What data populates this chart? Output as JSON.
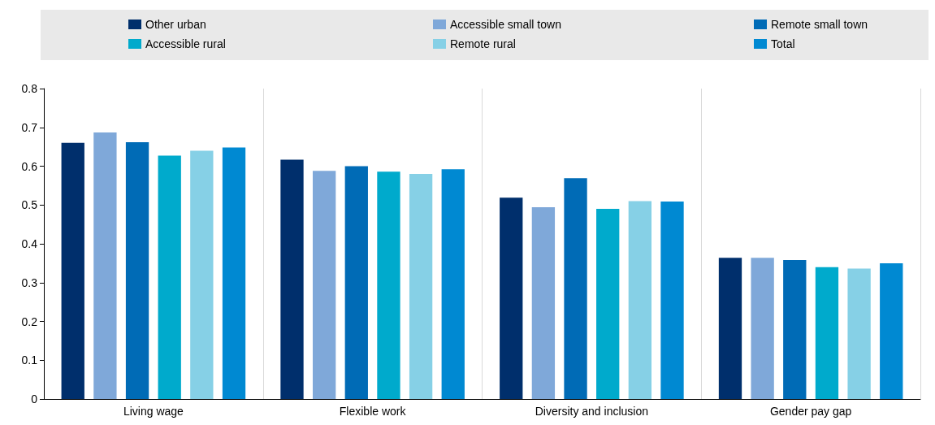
{
  "chart_data": {
    "type": "bar",
    "categories": [
      "Living wage",
      "Flexible work",
      "Diversity and inclusion",
      "Gender pay gap"
    ],
    "series": [
      {
        "name": "Other urban",
        "color": "#002f6c",
        "values": [
          0.66,
          0.617,
          0.519,
          0.364
        ]
      },
      {
        "name": "Accessible small town",
        "color": "#7fa8d9",
        "values": [
          0.687,
          0.588,
          0.494,
          0.364
        ]
      },
      {
        "name": "Remote small town",
        "color": "#006bb6",
        "values": [
          0.662,
          0.6,
          0.569,
          0.358
        ]
      },
      {
        "name": "Accessible rural",
        "color": "#00aacc",
        "values": [
          0.627,
          0.586,
          0.49,
          0.34
        ]
      },
      {
        "name": "Remote rural",
        "color": "#86d0e6",
        "values": [
          0.64,
          0.58,
          0.51,
          0.336
        ]
      },
      {
        "name": "Total",
        "color": "#0089d2",
        "values": [
          0.648,
          0.592,
          0.509,
          0.35
        ]
      }
    ],
    "ylim": [
      0,
      0.8
    ],
    "yticks": [
      0,
      0.1,
      0.2,
      0.3,
      0.4,
      0.5,
      0.6,
      0.7,
      0.8
    ],
    "grid": "x",
    "legend": "top"
  }
}
